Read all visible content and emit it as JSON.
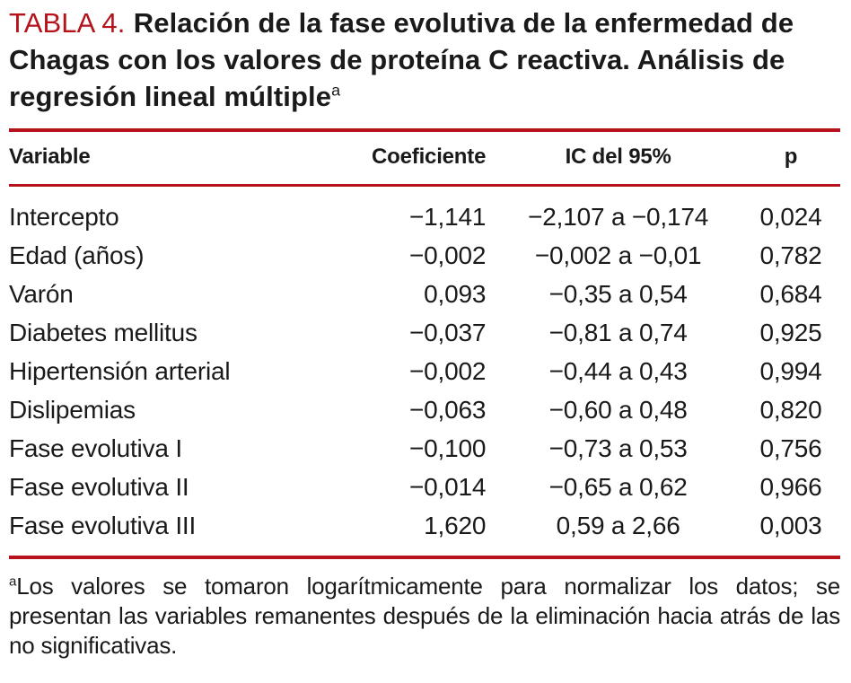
{
  "title": {
    "label": "TABLA 4.",
    "text": "Relación de la fase evolutiva de la enfermedad de Chagas con los valores de proteína C reactiva. Análisis de regresión lineal múltiple",
    "superscript": "a"
  },
  "table": {
    "headers": [
      "Variable",
      "Coeficiente",
      "IC del 95%",
      "p"
    ],
    "rows": [
      {
        "variable": "Intercepto",
        "coeficiente": "−1,141",
        "ic": "−2,107 a −0,174",
        "p": "0,024"
      },
      {
        "variable": "Edad (años)",
        "coeficiente": "−0,002",
        "ic": "−0,002 a −0,01",
        "p": "0,782"
      },
      {
        "variable": "Varón",
        "coeficiente": "0,093",
        "ic": "−0,35 a 0,54",
        "p": "0,684"
      },
      {
        "variable": "Diabetes mellitus",
        "coeficiente": "−0,037",
        "ic": "−0,81 a 0,74",
        "p": "0,925"
      },
      {
        "variable": "Hipertensión arterial",
        "coeficiente": "−0,002",
        "ic": "−0,44 a 0,43",
        "p": "0,994"
      },
      {
        "variable": "Dislipemias",
        "coeficiente": "−0,063",
        "ic": "−0,60 a 0,48",
        "p": "0,820"
      },
      {
        "variable": "Fase evolutiva I",
        "coeficiente": "−0,100",
        "ic": "−0,73 a 0,53",
        "p": "0,756"
      },
      {
        "variable": "Fase evolutiva II",
        "coeficiente": "−0,014",
        "ic": "−0,65 a 0,62",
        "p": "0,966"
      },
      {
        "variable": "Fase evolutiva III",
        "coeficiente": "1,620",
        "ic": "0,59 a 2,66",
        "p": "0,003"
      }
    ]
  },
  "footnote": {
    "superscript": "a",
    "text": "Los valores se tomaron logarítmicamente para normalizar los datos; se presentan las variables remanentes después de la eliminación hacia atrás de las no significativas."
  },
  "colors": {
    "accent_red": "#b5121b",
    "text": "#1a1a1a",
    "background": "#ffffff"
  }
}
